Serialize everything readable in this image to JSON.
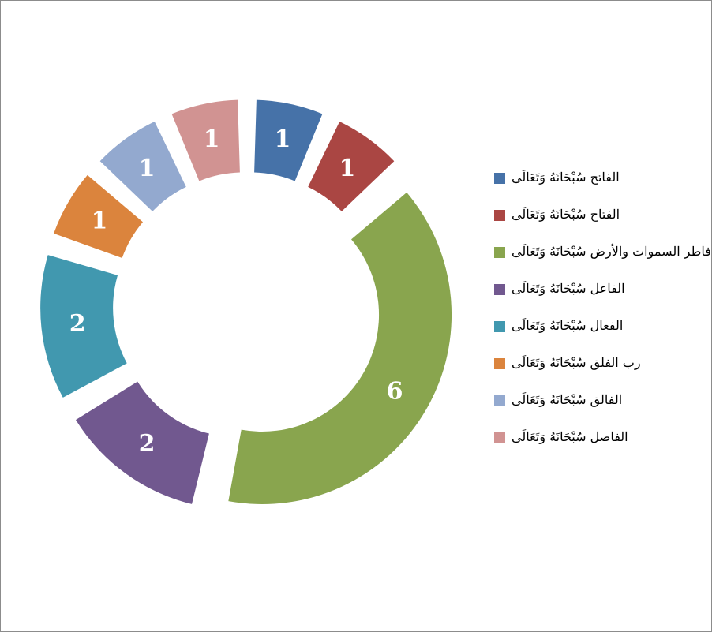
{
  "chart_data": {
    "type": "pie",
    "variant": "exploded-doughnut",
    "title": "",
    "legend_position": "right",
    "categories": [
      "الفاتح سُبْحَانَهُ وَتَعَالَى",
      "الفتاح سُبْحَانَهُ وَتَعَالَى",
      "فاطر السموات والأرض سُبْحَانَهُ وَتَعَالَى",
      "الفاعل سُبْحَانَهُ وَتَعَالَى",
      "الفعال سُبْحَانَهُ وَتَعَالَى",
      "رب الفلق سُبْحَانَهُ وَتَعَالَى",
      "الفالق سُبْحَانَهُ وَتَعَالَى",
      "الفاصل سُبْحَانَهُ وَتَعَالَى"
    ],
    "values": [
      1,
      1,
      6,
      2,
      2,
      1,
      1,
      1
    ],
    "colors": [
      "#4672a8",
      "#aa4643",
      "#89a54e",
      "#71588f",
      "#4198af",
      "#db843d",
      "#93a9cf",
      "#d19392"
    ]
  }
}
